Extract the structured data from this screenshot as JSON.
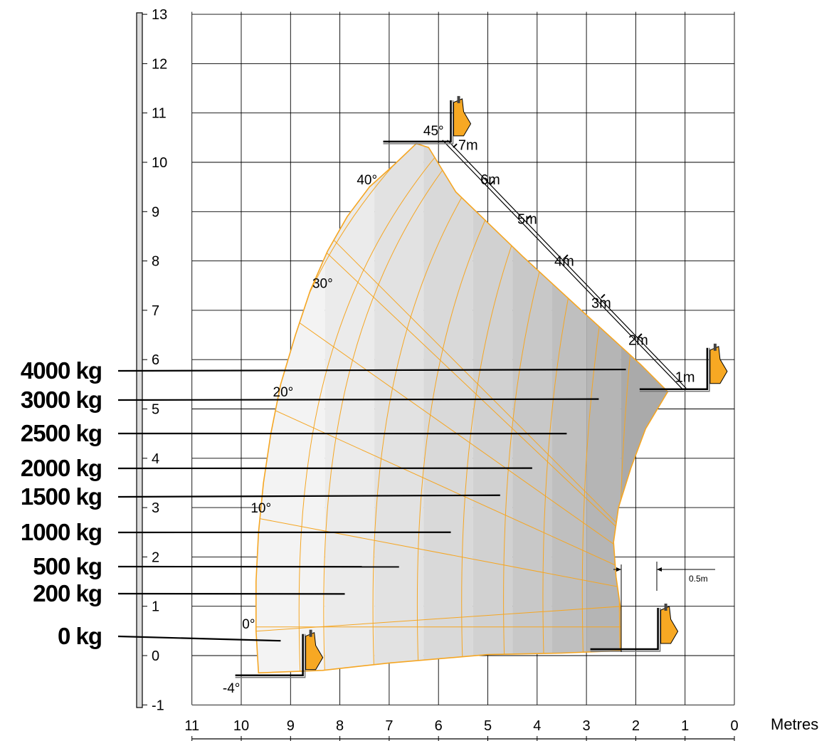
{
  "chart_data": {
    "type": "load-chart",
    "x_unit_label": "Metres",
    "x_ticks": [
      "11",
      "10",
      "9",
      "8",
      "7",
      "6",
      "5",
      "4",
      "3",
      "2",
      "1",
      "0"
    ],
    "x_range": [
      11,
      0
    ],
    "y_ticks": [
      "13",
      "12",
      "11",
      "10",
      "9",
      "8",
      "7",
      "6",
      "5",
      "4",
      "3",
      "2",
      "1",
      "0",
      "-1"
    ],
    "y_range": [
      -1,
      13
    ],
    "grid": true,
    "load_zones": [
      {
        "label": "4000 kg",
        "end_x": 2.2,
        "end_y": 5.8
      },
      {
        "label": "3000 kg",
        "end_x": 2.75,
        "end_y": 5.2
      },
      {
        "label": "2500 kg",
        "end_x": 3.4,
        "end_y": 4.5
      },
      {
        "label": "2000 kg",
        "end_x": 4.1,
        "end_y": 3.8
      },
      {
        "label": "1500 kg",
        "end_x": 4.75,
        "end_y": 3.25
      },
      {
        "label": "1000 kg",
        "end_x": 5.75,
        "end_y": 2.5
      },
      {
        "label": "500 kg",
        "end_x": 6.8,
        "end_y": 1.8
      },
      {
        "label": "200 kg",
        "end_x": 7.9,
        "end_y": 1.25
      },
      {
        "label": "0 kg",
        "end_x": 9.2,
        "end_y": 0.3
      }
    ],
    "boom_angles": [
      {
        "label": "45°",
        "x": 6.1,
        "y": 10.55
      },
      {
        "label": "40°",
        "x": 7.45,
        "y": 9.55
      },
      {
        "label": "30°",
        "x": 8.35,
        "y": 7.45
      },
      {
        "label": "20°",
        "x": 9.15,
        "y": 5.25
      },
      {
        "label": "10°",
        "x": 9.6,
        "y": 2.9
      },
      {
        "label": "0°",
        "x": 9.85,
        "y": 0.55
      },
      {
        "label": "-4°",
        "x": 10.2,
        "y": -0.75
      }
    ],
    "extensions": [
      {
        "label": "7m",
        "x": 5.4,
        "y": 10.25
      },
      {
        "label": "6m",
        "x": 4.95,
        "y": 9.55
      },
      {
        "label": "5m",
        "x": 4.2,
        "y": 8.75
      },
      {
        "label": "4m",
        "x": 3.45,
        "y": 7.9
      },
      {
        "label": "3m",
        "x": 2.7,
        "y": 7.05
      },
      {
        "label": "2m",
        "x": 1.95,
        "y": 6.3
      },
      {
        "label": "1m",
        "x": 1.0,
        "y": 5.55
      }
    ],
    "clearance_label": "0.5m",
    "colors": {
      "envelope_edge": "#f5a623",
      "grid": "#000000",
      "boom_arm": "#000000",
      "carriage": "#f7a823"
    }
  }
}
